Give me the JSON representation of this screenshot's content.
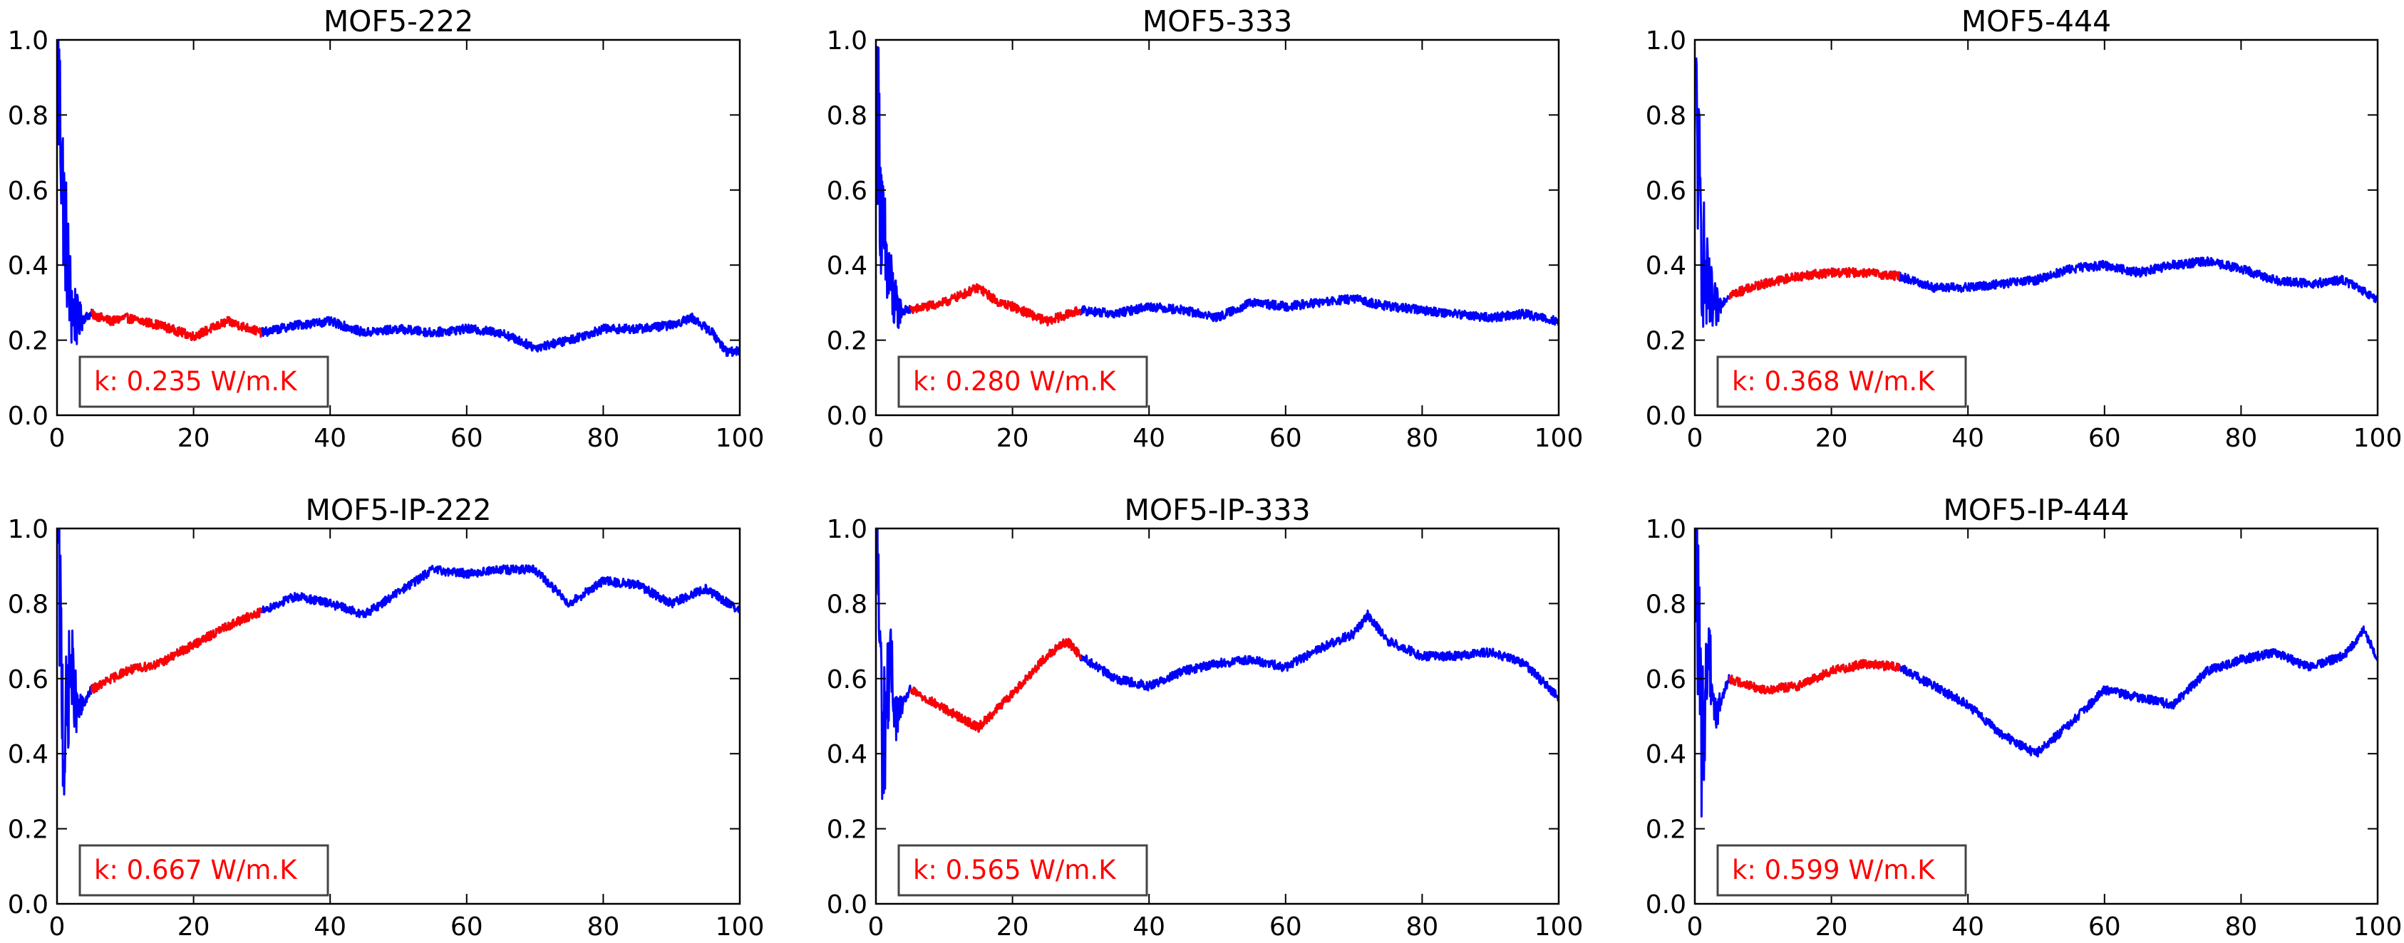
{
  "chart_data": [
    {
      "type": "line",
      "title": "MOF5-222",
      "xlim": [
        0,
        100
      ],
      "ylim": [
        0,
        1.0
      ],
      "xticks": [
        "0",
        "20",
        "40",
        "60",
        "80",
        "100"
      ],
      "yticks": [
        "0.0",
        "0.2",
        "0.4",
        "0.6",
        "0.8",
        "1.0"
      ],
      "grid": false,
      "fit_window": [
        5,
        30
      ],
      "annotation": "k: 0.235 W/m.K",
      "series": [
        {
          "color": "#0000ff",
          "x": [
            0.2,
            1,
            2,
            3,
            5,
            8,
            10,
            15,
            20,
            25,
            30,
            35,
            40,
            45,
            50,
            55,
            60,
            65,
            70,
            75,
            80,
            85,
            90,
            93,
            96,
            98,
            100
          ],
          "y": [
            0.9,
            0.55,
            0.3,
            0.25,
            0.27,
            0.25,
            0.26,
            0.24,
            0.21,
            0.25,
            0.22,
            0.24,
            0.25,
            0.22,
            0.23,
            0.22,
            0.23,
            0.22,
            0.18,
            0.2,
            0.23,
            0.23,
            0.24,
            0.26,
            0.22,
            0.17,
            0.17
          ]
        },
        {
          "color": "#ff0000",
          "x": [
            5,
            8,
            10,
            15,
            20,
            25,
            30
          ],
          "y": [
            0.27,
            0.25,
            0.26,
            0.24,
            0.21,
            0.25,
            0.22
          ]
        }
      ]
    },
    {
      "type": "line",
      "title": "MOF5-333",
      "xlim": [
        0,
        100
      ],
      "ylim": [
        0,
        1.0
      ],
      "xticks": [
        "0",
        "20",
        "40",
        "60",
        "80",
        "100"
      ],
      "yticks": [
        "0.0",
        "0.2",
        "0.4",
        "0.6",
        "0.8",
        "1.0"
      ],
      "grid": false,
      "fit_window": [
        5,
        30
      ],
      "annotation": "k: 0.280 W/m.K",
      "series": [
        {
          "color": "#0000ff",
          "x": [
            0.2,
            1,
            2,
            3,
            5,
            10,
            15,
            18,
            20,
            25,
            30,
            35,
            40,
            45,
            50,
            55,
            60,
            65,
            70,
            75,
            80,
            85,
            90,
            95,
            100
          ],
          "y": [
            0.85,
            0.45,
            0.35,
            0.28,
            0.28,
            0.3,
            0.34,
            0.3,
            0.29,
            0.25,
            0.28,
            0.27,
            0.29,
            0.28,
            0.26,
            0.3,
            0.29,
            0.3,
            0.31,
            0.29,
            0.28,
            0.27,
            0.26,
            0.27,
            0.25
          ]
        },
        {
          "color": "#ff0000",
          "x": [
            5,
            10,
            15,
            18,
            20,
            25,
            30
          ],
          "y": [
            0.28,
            0.3,
            0.34,
            0.3,
            0.29,
            0.25,
            0.28
          ]
        }
      ]
    },
    {
      "type": "line",
      "title": "MOF5-444",
      "xlim": [
        0,
        100
      ],
      "ylim": [
        0,
        1.0
      ],
      "xticks": [
        "0",
        "20",
        "40",
        "60",
        "80",
        "100"
      ],
      "yticks": [
        "0.0",
        "0.2",
        "0.4",
        "0.6",
        "0.8",
        "1.0"
      ],
      "grid": false,
      "fit_window": [
        5,
        30
      ],
      "annotation": "k: 0.368 W/m.K",
      "series": [
        {
          "color": "#0000ff",
          "x": [
            0.2,
            1,
            2,
            3,
            5,
            10,
            15,
            20,
            25,
            30,
            35,
            40,
            45,
            50,
            55,
            60,
            65,
            70,
            75,
            80,
            85,
            90,
            95,
            100
          ],
          "y": [
            0.8,
            0.45,
            0.3,
            0.28,
            0.32,
            0.35,
            0.37,
            0.38,
            0.38,
            0.37,
            0.34,
            0.34,
            0.35,
            0.36,
            0.39,
            0.4,
            0.38,
            0.4,
            0.41,
            0.39,
            0.36,
            0.35,
            0.36,
            0.31
          ]
        },
        {
          "color": "#ff0000",
          "x": [
            5,
            10,
            15,
            20,
            25,
            30
          ],
          "y": [
            0.32,
            0.35,
            0.37,
            0.38,
            0.38,
            0.37
          ]
        }
      ]
    },
    {
      "type": "line",
      "title": "MOF5-IP-222",
      "xlim": [
        0,
        100
      ],
      "ylim": [
        0,
        1.0
      ],
      "xticks": [
        "0",
        "20",
        "40",
        "60",
        "80",
        "100"
      ],
      "yticks": [
        "0.0",
        "0.2",
        "0.4",
        "0.6",
        "0.8",
        "1.0"
      ],
      "grid": false,
      "fit_window": [
        5,
        30
      ],
      "annotation": "k: 0.667 W/m.K",
      "series": [
        {
          "color": "#0000ff",
          "x": [
            0.2,
            1,
            2,
            3,
            5,
            10,
            15,
            20,
            25,
            30,
            35,
            40,
            45,
            50,
            55,
            60,
            65,
            70,
            75,
            80,
            85,
            90,
            95,
            100
          ],
          "y": [
            0.95,
            0.4,
            0.65,
            0.5,
            0.57,
            0.62,
            0.64,
            0.69,
            0.74,
            0.78,
            0.82,
            0.8,
            0.77,
            0.83,
            0.89,
            0.88,
            0.89,
            0.89,
            0.8,
            0.86,
            0.85,
            0.8,
            0.84,
            0.78
          ]
        },
        {
          "color": "#ff0000",
          "x": [
            5,
            10,
            15,
            20,
            25,
            30
          ],
          "y": [
            0.57,
            0.62,
            0.64,
            0.69,
            0.74,
            0.78
          ]
        }
      ]
    },
    {
      "type": "line",
      "title": "MOF5-IP-333",
      "xlim": [
        0,
        100
      ],
      "ylim": [
        0,
        1.0
      ],
      "xticks": [
        "0",
        "20",
        "40",
        "60",
        "80",
        "100"
      ],
      "yticks": [
        "0.0",
        "0.2",
        "0.4",
        "0.6",
        "0.8",
        "1.0"
      ],
      "grid": false,
      "fit_window": [
        5,
        30
      ],
      "annotation": "k: 0.565 W/m.K",
      "series": [
        {
          "color": "#0000ff",
          "x": [
            0.2,
            1,
            2,
            3,
            5,
            10,
            15,
            20,
            25,
            28,
            30,
            35,
            40,
            45,
            50,
            55,
            60,
            65,
            70,
            72,
            75,
            80,
            85,
            90,
            95,
            100
          ],
          "y": [
            0.95,
            0.4,
            0.65,
            0.5,
            0.57,
            0.52,
            0.47,
            0.56,
            0.66,
            0.7,
            0.66,
            0.6,
            0.58,
            0.62,
            0.64,
            0.65,
            0.63,
            0.68,
            0.72,
            0.77,
            0.7,
            0.66,
            0.66,
            0.67,
            0.64,
            0.55
          ]
        },
        {
          "color": "#ff0000",
          "x": [
            5,
            10,
            15,
            20,
            25,
            28,
            30
          ],
          "y": [
            0.57,
            0.52,
            0.47,
            0.56,
            0.66,
            0.7,
            0.66
          ]
        }
      ]
    },
    {
      "type": "line",
      "title": "MOF5-IP-444",
      "xlim": [
        0,
        100
      ],
      "ylim": [
        0,
        1.0
      ],
      "xticks": [
        "0",
        "20",
        "40",
        "60",
        "80",
        "100"
      ],
      "yticks": [
        "0.0",
        "0.2",
        "0.4",
        "0.6",
        "0.8",
        "1.0"
      ],
      "grid": false,
      "fit_window": [
        5,
        30
      ],
      "annotation": "k: 0.599 W/m.K",
      "series": [
        {
          "color": "#0000ff",
          "x": [
            0.2,
            1,
            2,
            3,
            5,
            10,
            15,
            20,
            25,
            30,
            35,
            40,
            45,
            50,
            55,
            60,
            65,
            70,
            75,
            80,
            85,
            90,
            95,
            98,
            100
          ],
          "y": [
            0.95,
            0.4,
            0.7,
            0.5,
            0.6,
            0.57,
            0.58,
            0.62,
            0.64,
            0.63,
            0.58,
            0.53,
            0.45,
            0.4,
            0.48,
            0.57,
            0.55,
            0.53,
            0.62,
            0.65,
            0.67,
            0.63,
            0.66,
            0.73,
            0.65
          ]
        },
        {
          "color": "#ff0000",
          "x": [
            5,
            10,
            15,
            20,
            25,
            30
          ],
          "y": [
            0.6,
            0.57,
            0.58,
            0.62,
            0.64,
            0.63
          ]
        }
      ]
    }
  ]
}
